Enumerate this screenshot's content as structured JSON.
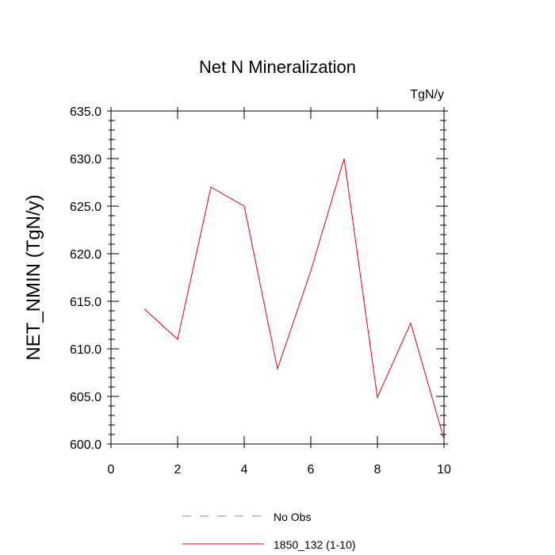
{
  "chart_data": {
    "type": "line",
    "title": "Net N Mineralization",
    "units_label": "TgN/y",
    "ylabel": "NET_NMIN  (TgN/y)",
    "xlabel": "",
    "xlim": [
      0,
      10
    ],
    "ylim": [
      600,
      635
    ],
    "x_ticks": [
      0,
      2,
      4,
      6,
      8,
      10
    ],
    "x_tick_labels": [
      "0",
      "2",
      "4",
      "6",
      "8",
      "10"
    ],
    "y_ticks": [
      600,
      605,
      610,
      615,
      620,
      625,
      630,
      635
    ],
    "y_tick_labels": [
      "600.0",
      "605.0",
      "610.0",
      "615.0",
      "620.0",
      "625.0",
      "630.0",
      "635.0"
    ],
    "grid": false,
    "legend_position": "bottom",
    "series": [
      {
        "name": "1850_132 (1-10)",
        "color": "#e8000b",
        "style": "solid",
        "x": [
          1,
          2,
          3,
          4,
          5,
          6,
          7,
          8,
          9,
          10
        ],
        "values": [
          614.2,
          611.0,
          627.0,
          625.0,
          607.9,
          618.2,
          630.0,
          604.9,
          612.7,
          600.5
        ]
      }
    ],
    "legend": [
      {
        "label": "No Obs",
        "color": "#8080e0",
        "style": "dashed"
      },
      {
        "label": "1850_132 (1-10)",
        "color": "#e8000b",
        "style": "solid"
      }
    ]
  }
}
